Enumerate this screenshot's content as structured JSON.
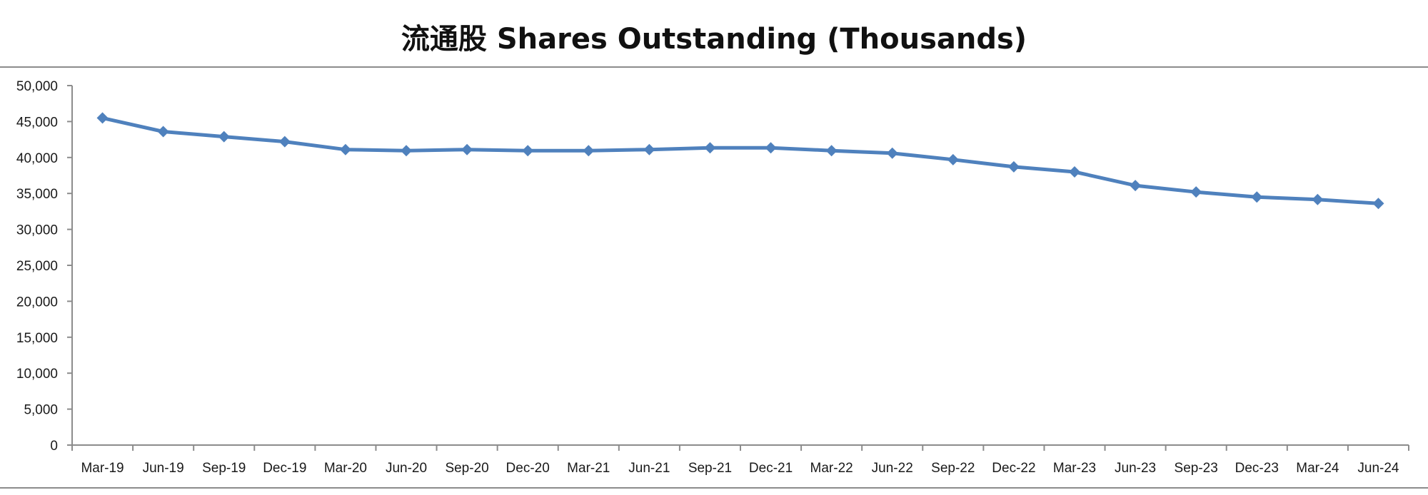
{
  "chart_data": {
    "type": "line",
    "title": "流通股 Shares Outstanding (Thousands)",
    "xlabel": "",
    "ylabel": "",
    "categories": [
      "Mar-19",
      "Jun-19",
      "Sep-19",
      "Dec-19",
      "Mar-20",
      "Jun-20",
      "Sep-20",
      "Dec-20",
      "Mar-21",
      "Jun-21",
      "Sep-21",
      "Dec-21",
      "Mar-22",
      "Jun-22",
      "Sep-22",
      "Dec-22",
      "Mar-23",
      "Jun-23",
      "Sep-23",
      "Dec-23",
      "Mar-24",
      "Jun-24"
    ],
    "series": [
      {
        "values": [
          45500,
          43600,
          42900,
          42200,
          41100,
          40950,
          41100,
          40950,
          40950,
          41100,
          41350,
          41350,
          40950,
          40600,
          39700,
          38700,
          38000,
          36100,
          35200,
          34500,
          34150,
          33600
        ],
        "color": "#4f81bd",
        "marker": "diamond"
      }
    ],
    "ylim": [
      0,
      50000
    ],
    "yticks": [
      "50,000",
      "45,000",
      "40,000",
      "35,000",
      "30,000",
      "25,000",
      "20,000",
      "15,000",
      "10,000",
      "5,000",
      "0"
    ],
    "grid": false,
    "legend": "none"
  }
}
